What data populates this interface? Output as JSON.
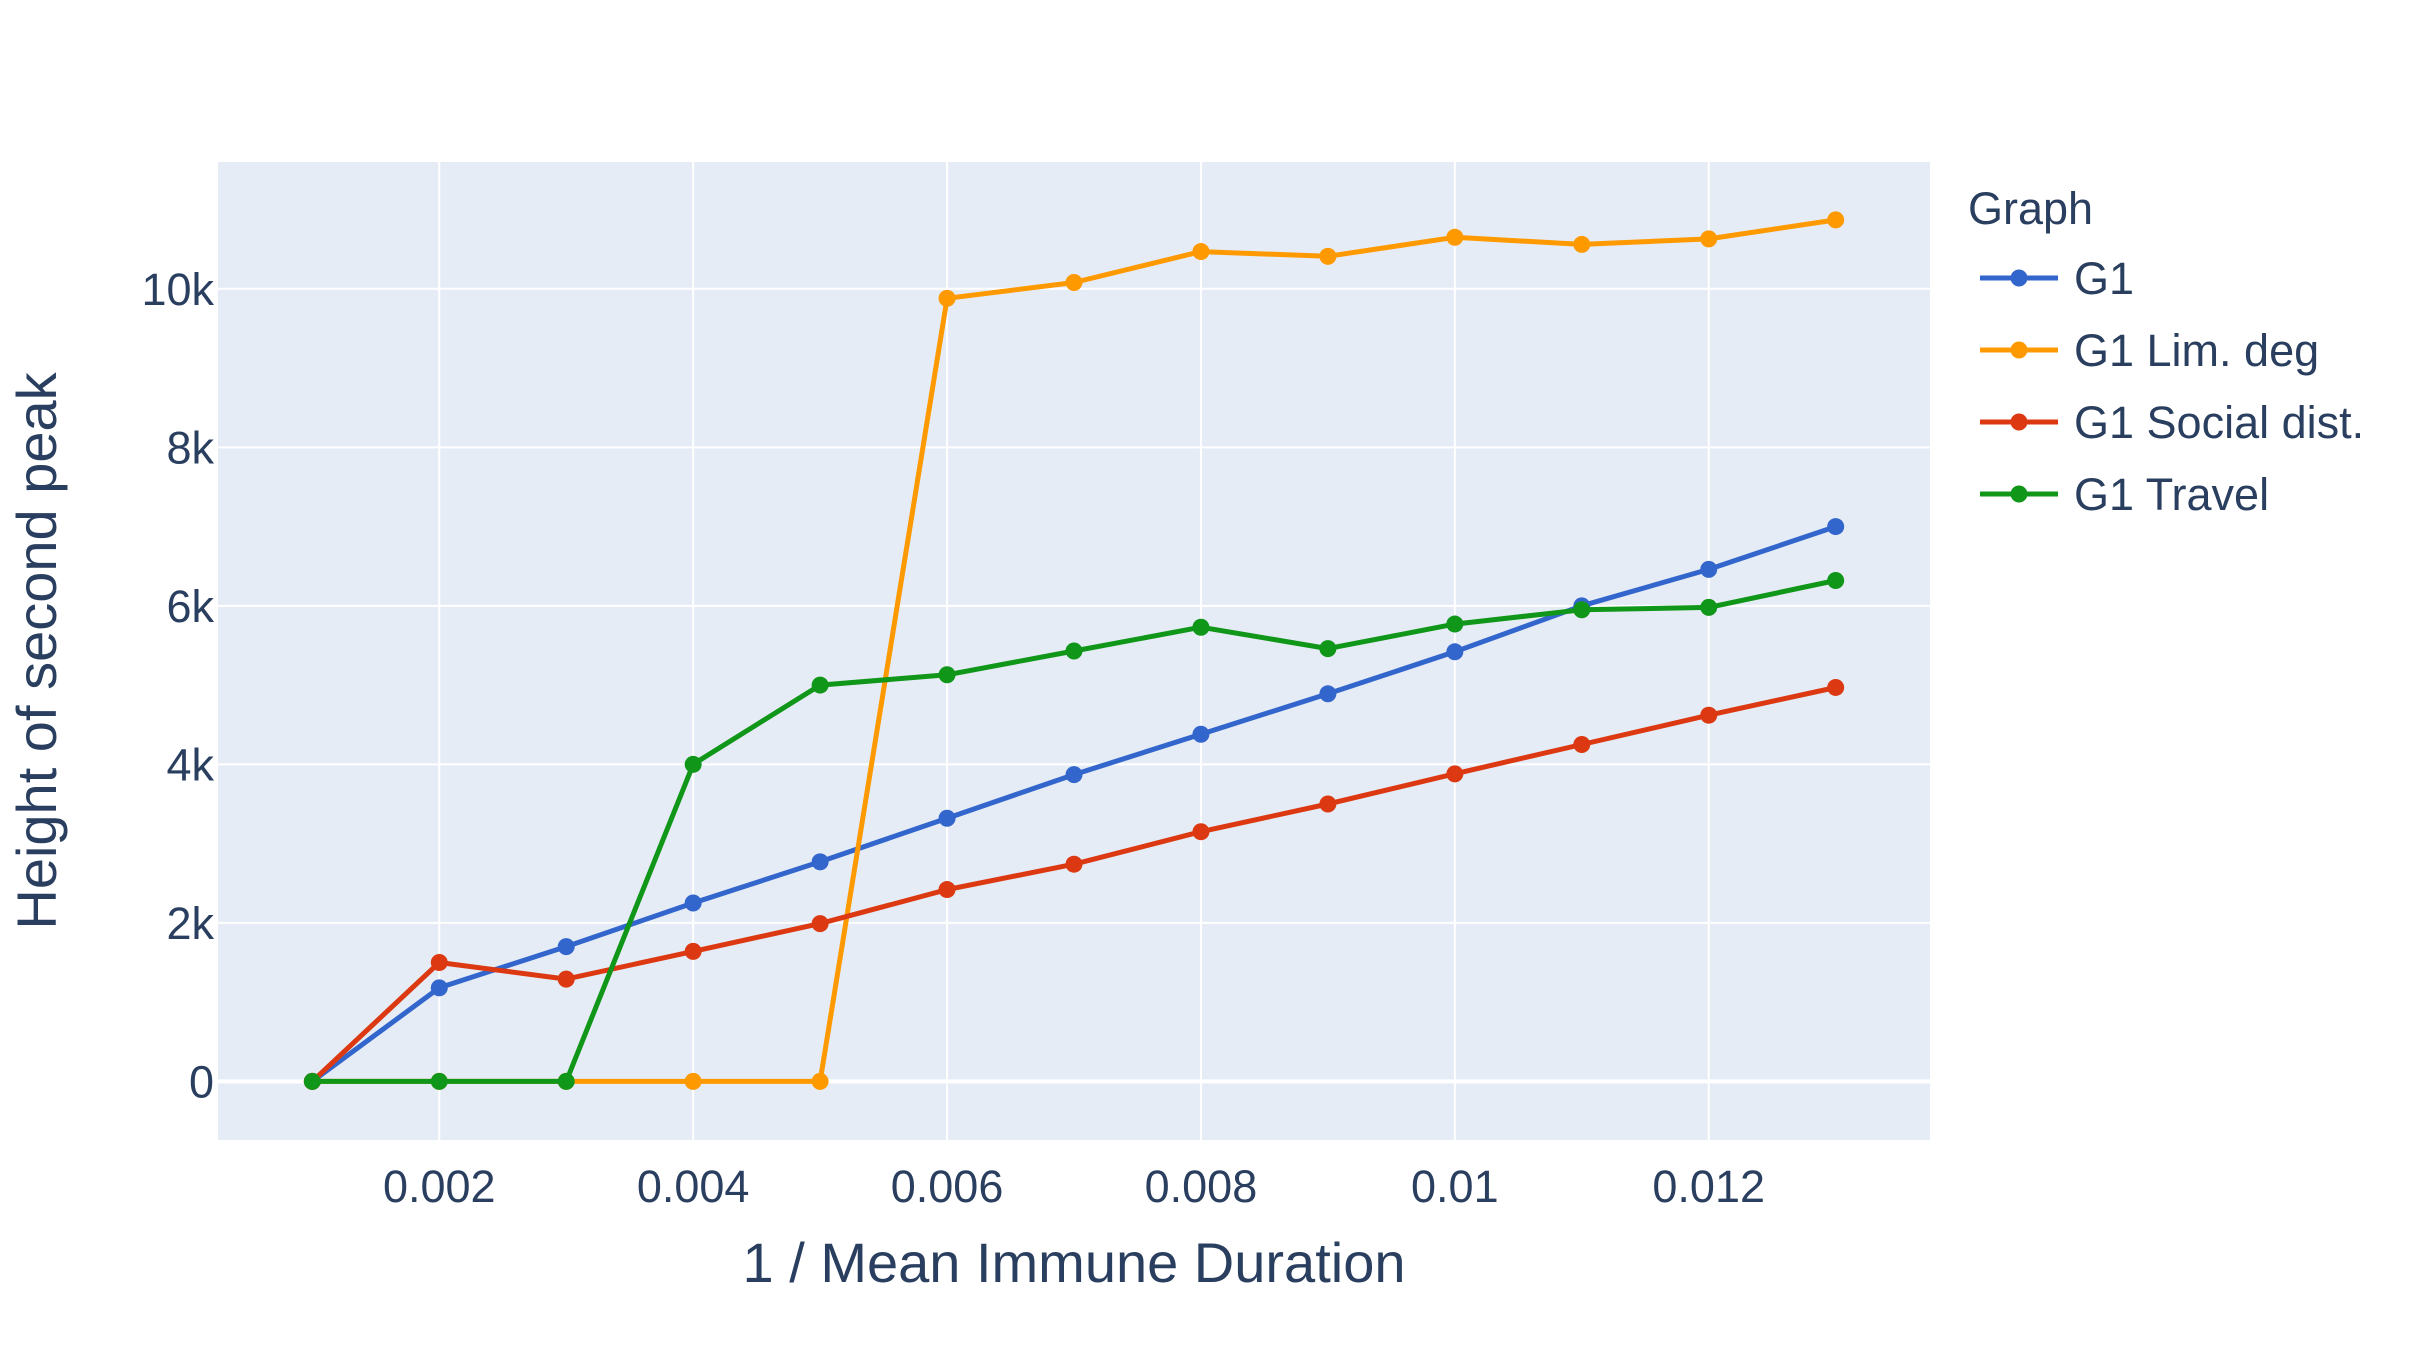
{
  "chart_data": {
    "type": "line",
    "xlabel": "1 / Mean Immune Duration",
    "ylabel": "Height of second peak",
    "xlim": [
      0.000257,
      0.013743
    ],
    "ylim": [
      -740,
      11600
    ],
    "x_ticks": [
      0.002,
      0.004,
      0.006,
      0.008,
      0.01,
      0.012
    ],
    "x_tick_labels": [
      "0.002",
      "0.004",
      "0.006",
      "0.008",
      "0.01",
      "0.012"
    ],
    "y_ticks": [
      0,
      2000,
      4000,
      6000,
      8000,
      10000
    ],
    "y_tick_labels": [
      "0",
      "2k",
      "4k",
      "6k",
      "8k",
      "10k"
    ],
    "grid": true,
    "legend": {
      "title": "Graph",
      "position": "right"
    },
    "x": [
      0.001,
      0.002,
      0.003,
      0.004,
      0.005,
      0.006,
      0.007,
      0.008,
      0.009,
      0.01,
      0.011,
      0.012,
      0.013
    ],
    "series": [
      {
        "name": "G1",
        "color": "#3366cc",
        "values": [
          0,
          1180,
          1700,
          2250,
          2770,
          3320,
          3870,
          4380,
          4890,
          5420,
          6000,
          6460,
          7000
        ]
      },
      {
        "name": "G1 Lim. deg",
        "color": "#ff9900",
        "values": [
          0,
          0,
          0,
          0,
          0,
          9880,
          10080,
          10470,
          10410,
          10650,
          10560,
          10630,
          10870
        ]
      },
      {
        "name": "G1 Social dist.",
        "color": "#dc3912",
        "values": [
          0,
          1500,
          1290,
          1640,
          1990,
          2420,
          2740,
          3150,
          3500,
          3880,
          4250,
          4620,
          4970
        ]
      },
      {
        "name": "G1 Travel",
        "color": "#109618",
        "values": [
          0,
          0,
          0,
          4000,
          5000,
          5130,
          5430,
          5730,
          5460,
          5770,
          5950,
          5980,
          6320
        ]
      }
    ],
    "colors": {
      "plot_bg": "#e5ecf6",
      "grid": "#ffffff",
      "text": "#2a3f5f"
    }
  }
}
